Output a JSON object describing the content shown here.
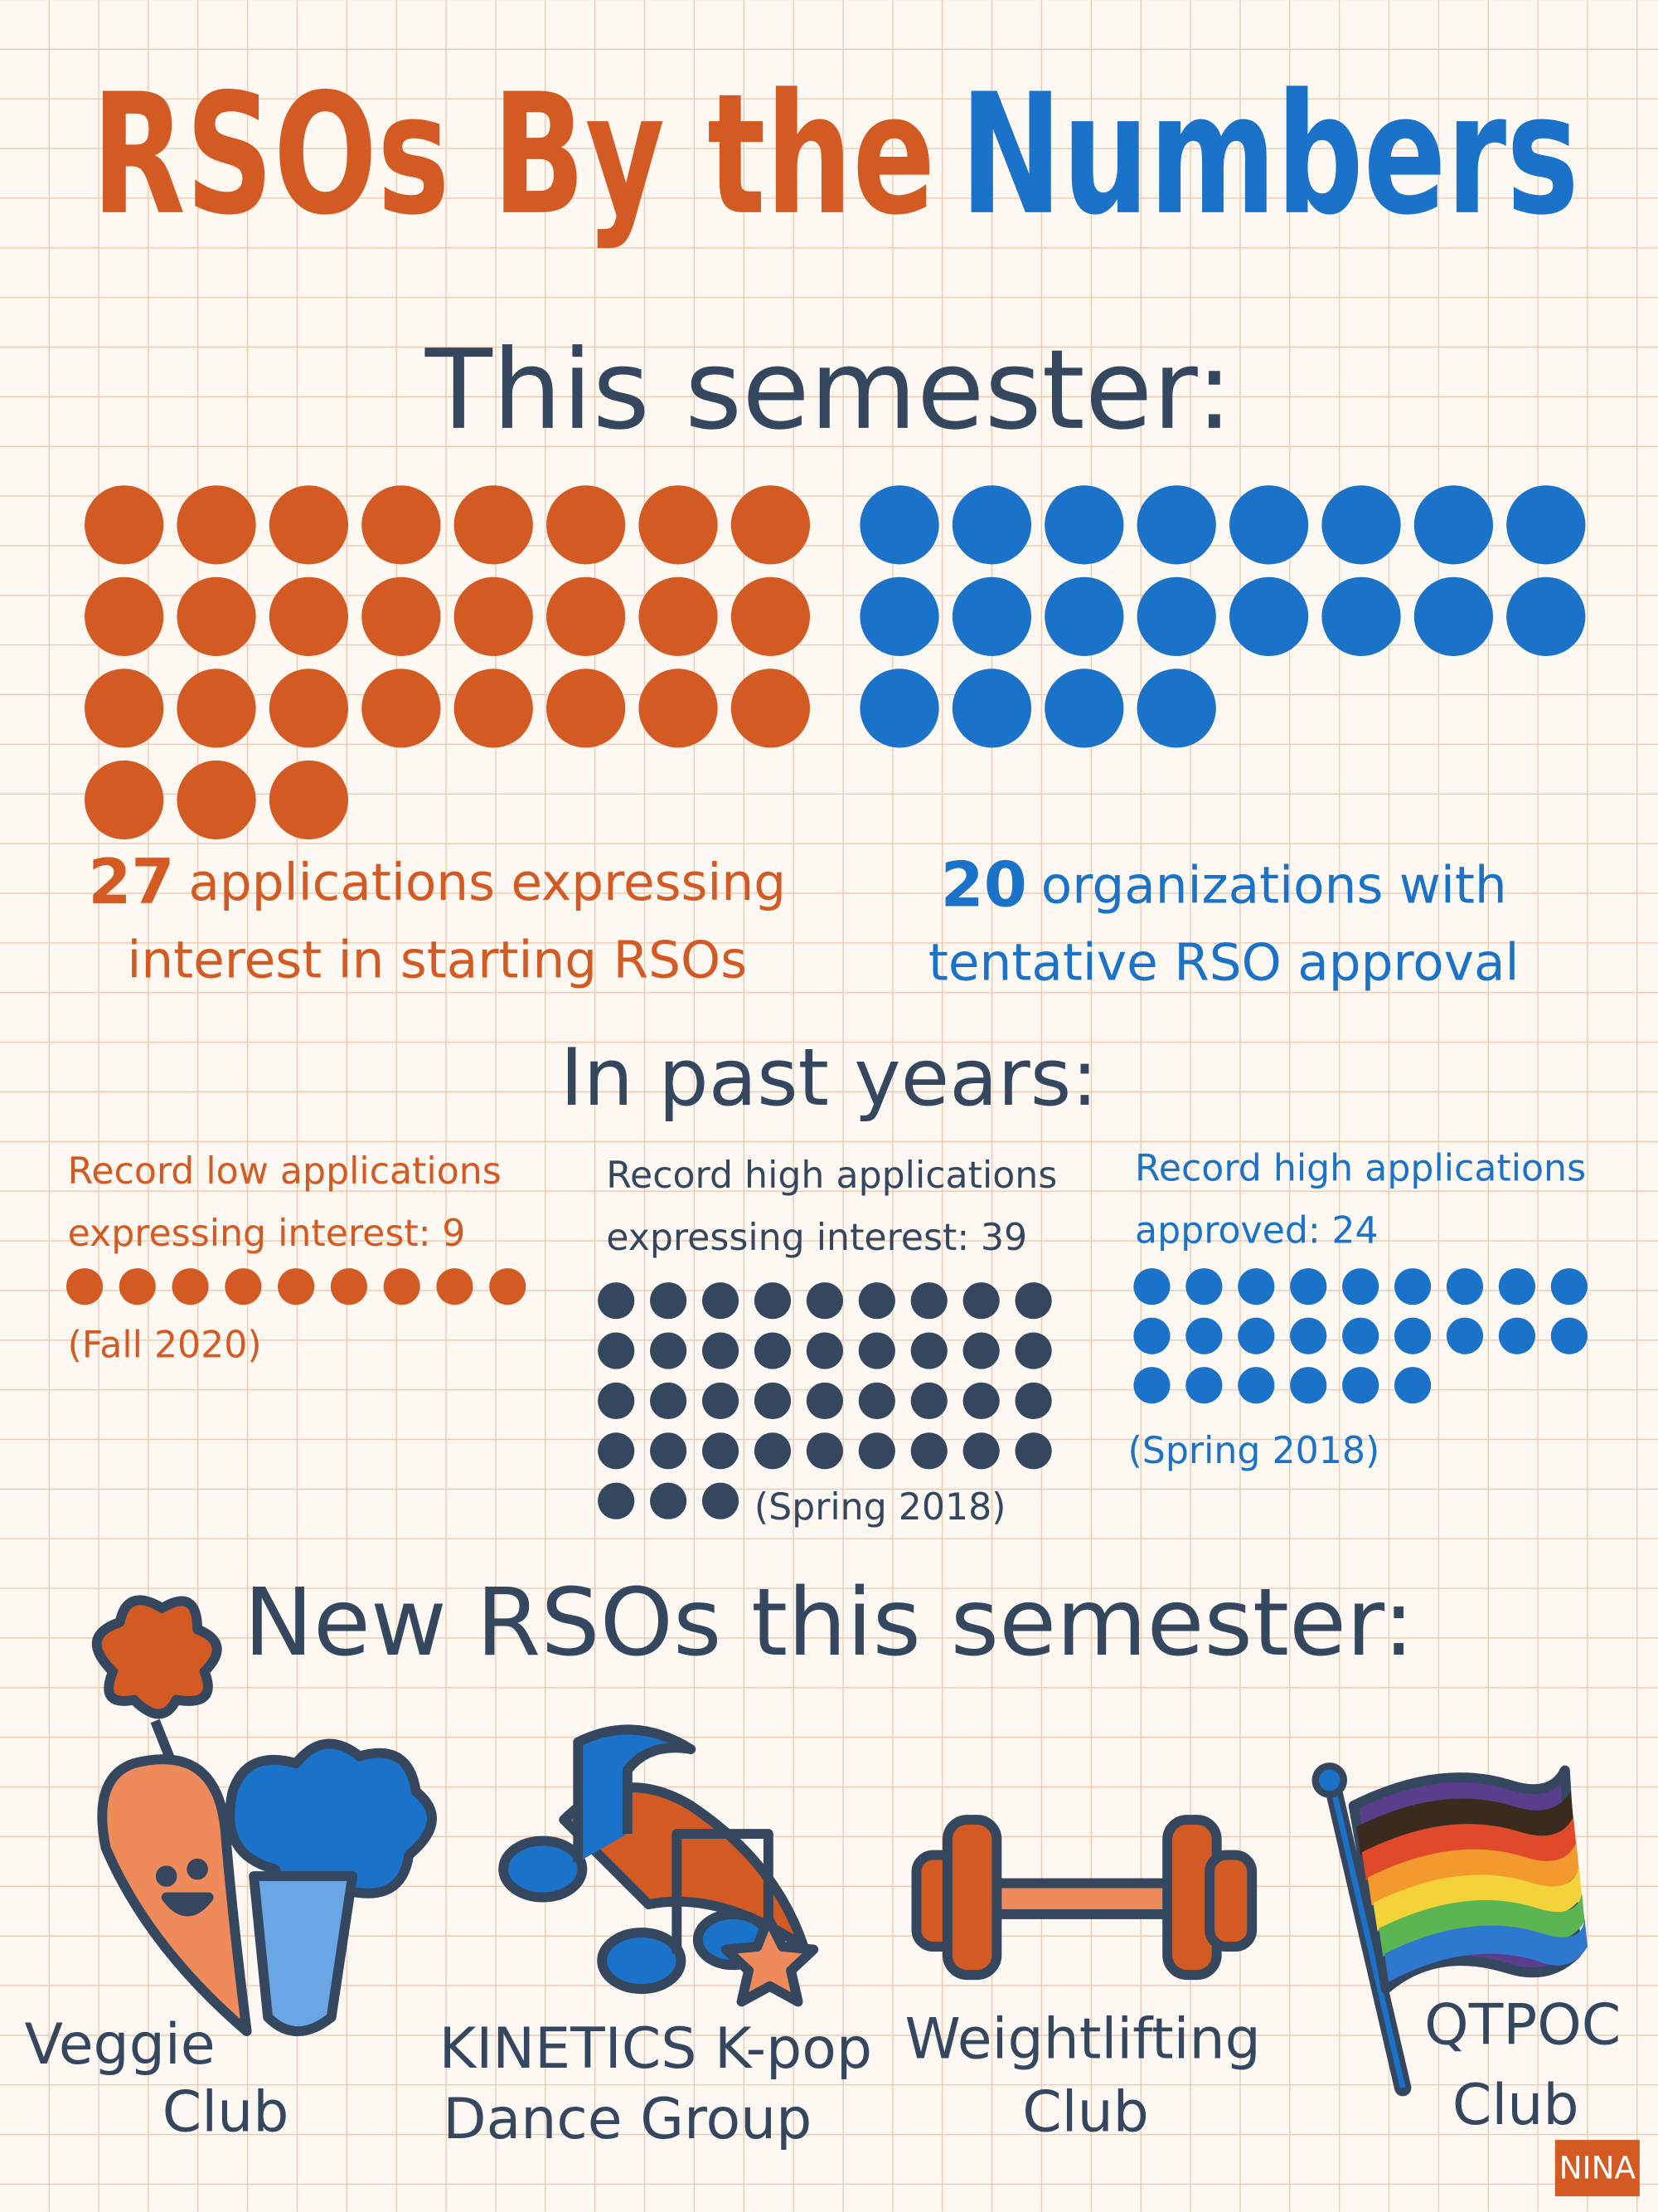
{
  "title": {
    "part1": "RSOs By the",
    "part2": "Numbers"
  },
  "this_semester": {
    "heading": "This semester:",
    "items": [
      {
        "count": 27,
        "lines": [
          "applications expressing",
          "interest in starting RSOs"
        ],
        "color": "#d35a22"
      },
      {
        "count": 20,
        "lines": [
          "organizations with",
          "tentative RSO approval"
        ],
        "color": "#1a73c8"
      }
    ]
  },
  "past_years": {
    "heading": "In past years:",
    "records": [
      {
        "lines": [
          "Record low applications",
          "expressing interest:"
        ],
        "count": 9,
        "period": "(Fall 2020)",
        "color": "#d35a22"
      },
      {
        "lines": [
          "Record high applications",
          "expressing interest:"
        ],
        "count": 39,
        "period": "(Spring 2018)",
        "color": "#34475f"
      },
      {
        "lines": [
          "Record high applications",
          "approved:"
        ],
        "count": 24,
        "period": "(Spring 2018)",
        "color": "#1a73c8"
      }
    ]
  },
  "new_rsos": {
    "heading": "New RSOs this semester:",
    "clubs": [
      {
        "lines": [
          "Veggie",
          "Club"
        ]
      },
      {
        "lines": [
          "KINETICS K-pop",
          "Dance Group"
        ]
      },
      {
        "lines": [
          "Weightlifting",
          "Club"
        ]
      },
      {
        "lines": [
          "QTPOC",
          "Club"
        ]
      }
    ]
  },
  "signature": "NINA"
}
